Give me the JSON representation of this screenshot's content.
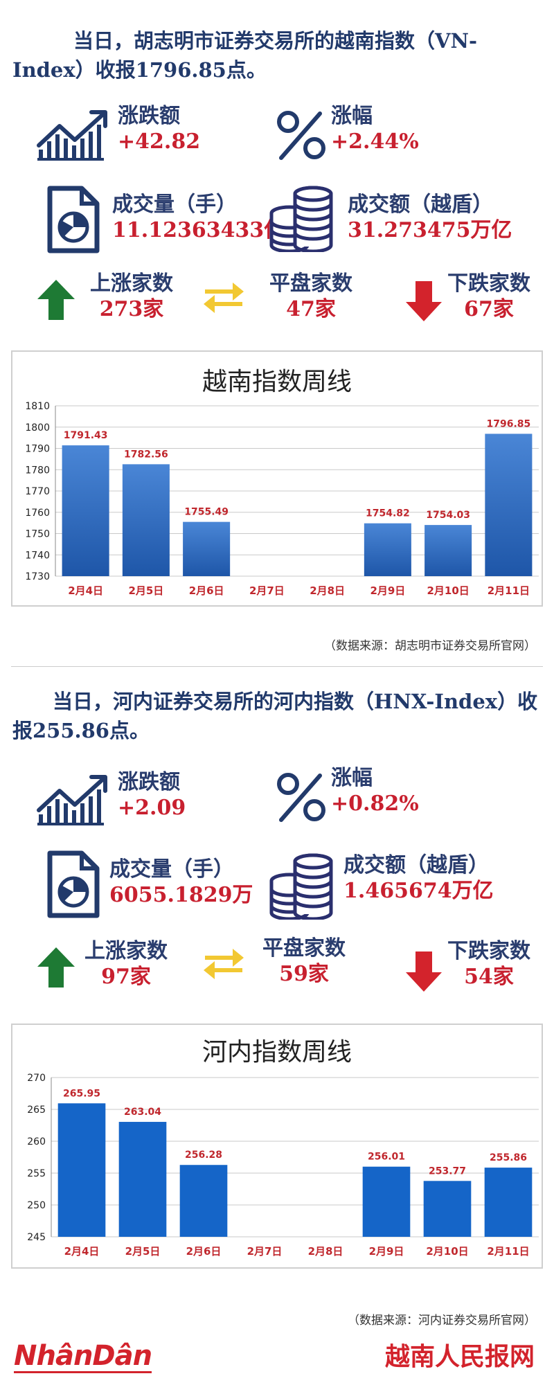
{
  "hose": {
    "headline": "当日，胡志明市证券交易所的越南指数（VN-Index）收报1796.85点。",
    "change": {
      "label": "涨跌额",
      "value": "+42.82"
    },
    "pct": {
      "label": "涨幅",
      "value": "+2.44%"
    },
    "volume": {
      "label": "成交量（手）",
      "value": "11.12363433亿"
    },
    "turnover": {
      "label": "成交额（越盾）",
      "value": "31.273475万亿"
    },
    "up": {
      "label": "上涨家数",
      "value": "273家"
    },
    "flat": {
      "label": "平盘家数",
      "value": "47家"
    },
    "down": {
      "label": "下跌家数",
      "value": "67家"
    },
    "source": "（数据来源：胡志明市证券交易所官网）"
  },
  "hnx": {
    "headline": "当日，河内证券交易所的河内指数（HNX-Index）收报255.86点。",
    "change": {
      "label": "涨跌额",
      "value": "+2.09"
    },
    "pct": {
      "label": "涨幅",
      "value": "+0.82%"
    },
    "volume": {
      "label": "成交量（手）",
      "value": "6055.1829万"
    },
    "turnover": {
      "label": "成交额（越盾）",
      "value": "1.465674万亿"
    },
    "up": {
      "label": "上涨家数",
      "value": "97家"
    },
    "flat": {
      "label": "平盘家数",
      "value": "59家"
    },
    "down": {
      "label": "下跌家数",
      "value": "54家"
    },
    "source": "（数据来源：河内证券交易所官网）"
  },
  "footer": {
    "logo": "NhânDân",
    "brand": "越南人民报网"
  },
  "colors": {
    "up": "#1e7a34",
    "down": "#d3232c",
    "flat": "#f2c832",
    "navy": "#223a6b",
    "value_red": "#c8202f"
  },
  "chart_data": [
    {
      "type": "bar",
      "title": "越南指数周线",
      "categories": [
        "2月4日",
        "2月5日",
        "2月6日",
        "2月7日",
        "2月8日",
        "2月9日",
        "2月10日",
        "2月11日"
      ],
      "values": [
        1791.43,
        1782.56,
        1755.49,
        null,
        null,
        1754.82,
        1754.03,
        1796.85
      ],
      "labels": [
        "1791.43",
        "1782.56",
        "1755.49",
        "",
        "",
        "1754.82",
        "1754.03",
        "1796.85"
      ],
      "ylim": [
        1730,
        1810
      ],
      "yticks": [
        1730,
        1740,
        1750,
        1760,
        1770,
        1780,
        1790,
        1800,
        1810
      ],
      "grid": true,
      "bar_style": "gradient"
    },
    {
      "type": "bar",
      "title": "河内指数周线",
      "categories": [
        "2月4日",
        "2月5日",
        "2月6日",
        "2月7日",
        "2月8日",
        "2月9日",
        "2月10日",
        "2月11日"
      ],
      "values": [
        265.95,
        263.04,
        256.28,
        null,
        null,
        256.01,
        253.77,
        255.86
      ],
      "labels": [
        "265.95",
        "263.04",
        "256.28",
        "",
        "",
        "256.01",
        "253.77",
        "255.86"
      ],
      "ylim": [
        245,
        270
      ],
      "yticks": [
        245,
        250,
        255,
        260,
        265,
        270
      ],
      "grid": true,
      "bar_style": "flat"
    }
  ]
}
